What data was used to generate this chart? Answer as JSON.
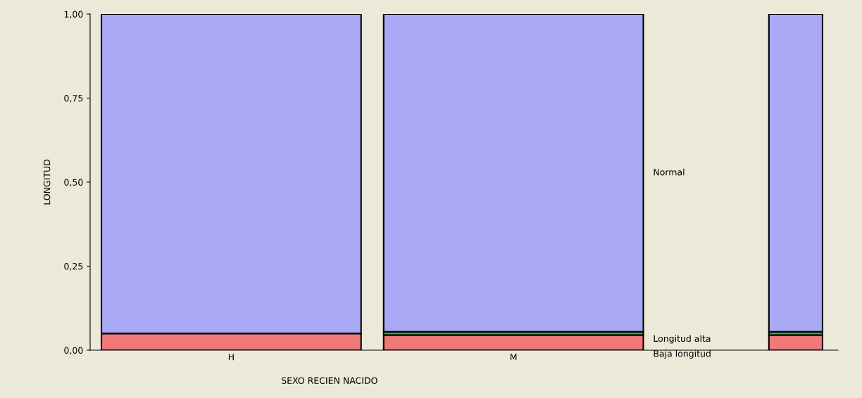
{
  "chart_data": {
    "type": "bar",
    "stacked": true,
    "xlabel": "SEXO RECIEN NACIDO",
    "ylabel": "LONGITUD",
    "categories": [
      "H",
      "M",
      null
    ],
    "ylim": [
      0,
      1
    ],
    "yticks": [
      {
        "value": 0,
        "label": "0,00"
      },
      {
        "value": 0.25,
        "label": "0,25"
      },
      {
        "value": 0.5,
        "label": "0,50"
      },
      {
        "value": 0.75,
        "label": "0,75"
      },
      {
        "value": 1,
        "label": "1,00"
      }
    ],
    "legend": false,
    "series": [
      {
        "name": "Baja longitud",
        "color": "#f07878",
        "values": [
          0.05,
          0.045,
          0.045
        ]
      },
      {
        "name": "Longitud alta",
        "color": "#3aa03a",
        "values": [
          0.0,
          0.01,
          0.01
        ]
      },
      {
        "name": "Normal",
        "color": "#a8a8f4",
        "values": [
          0.95,
          0.945,
          0.945
        ]
      }
    ]
  }
}
